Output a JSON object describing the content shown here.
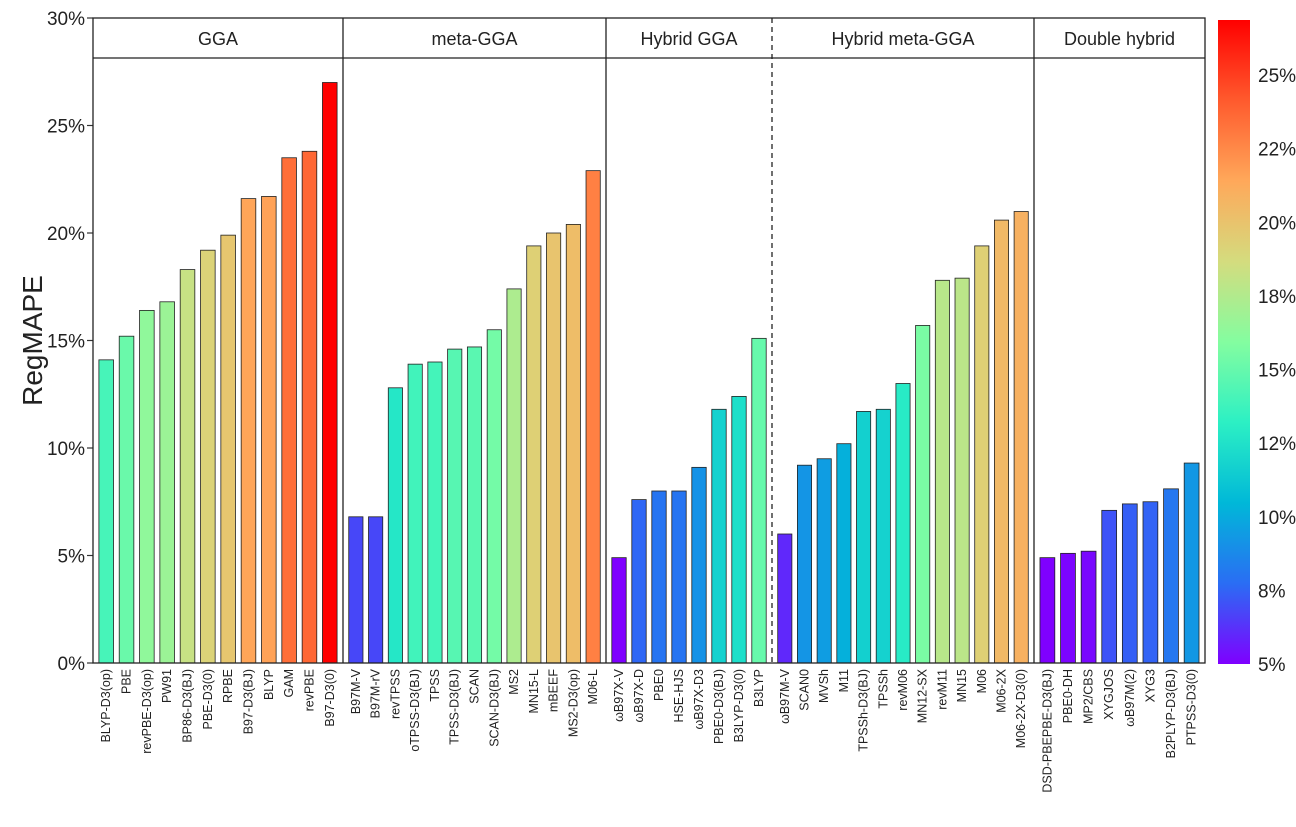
{
  "chart_data": {
    "type": "bar",
    "ylabel": "RegMAPE",
    "xlabel": "",
    "ylim": [
      0,
      30
    ],
    "y_ticks": [
      "0%",
      "5%",
      "10%",
      "15%",
      "20%",
      "25%",
      "30%"
    ],
    "grid": false,
    "legend": "colorbar-right",
    "colorbar": {
      "labels": [
        "5%",
        "8%",
        "10%",
        "12%",
        "15%",
        "18%",
        "20%",
        "22%",
        "25%"
      ],
      "range": [
        5,
        27
      ],
      "colormap": "rainbow",
      "colors": [
        "#7f00ff",
        "#2a6df4",
        "#00b8d8",
        "#2cf0c4",
        "#84fda0",
        "#d4dc7e",
        "#ffa85a",
        "#ff5a2d",
        "#ff0000"
      ]
    },
    "groups": [
      {
        "name": "GGA",
        "categories": [
          "BLYP-D3(op)",
          "PBE",
          "revPBE-D3(op)",
          "PW91",
          "BP86-D3(BJ)",
          "PBE-D3(0)",
          "RPBE",
          "B97-D3(BJ)",
          "BLYP",
          "GAM",
          "revPBE",
          "B97-D3(0)"
        ],
        "values": [
          14.1,
          15.2,
          16.4,
          16.8,
          18.3,
          19.2,
          19.9,
          21.6,
          21.7,
          23.5,
          23.8,
          27.0
        ]
      },
      {
        "name": "meta-GGA",
        "categories": [
          "B97M-V",
          "B97M-rV",
          "revTPSS",
          "oTPSS-D3(BJ)",
          "TPSS",
          "TPSS-D3(BJ)",
          "SCAN",
          "SCAN-D3(BJ)",
          "MS2",
          "MN15-L",
          "mBEEF",
          "MS2-D3(op)",
          "M06-L"
        ],
        "values": [
          6.8,
          6.8,
          12.8,
          13.9,
          14.0,
          14.6,
          14.7,
          15.5,
          17.4,
          19.4,
          20.0,
          20.4,
          22.9
        ]
      },
      {
        "name": "Hybrid GGA",
        "categories": [
          "ωB97X-V",
          "ωB97X-D",
          "PBE0",
          "HSE-HJS",
          "ωB97X-D3",
          "PBE0-D3(BJ)",
          "B3LYP-D3(0)",
          "B3LYP"
        ],
        "values": [
          4.9,
          7.6,
          8.0,
          8.0,
          9.1,
          11.8,
          12.4,
          15.1
        ]
      },
      {
        "name": "Hybrid meta-GGA",
        "categories": [
          "ωB97M-V",
          "SCAN0",
          "MVSh",
          "M11",
          "TPSSh-D3(BJ)",
          "TPSSh",
          "revM06",
          "MN12-SX",
          "revM11",
          "MN15",
          "M06",
          "M06-2X",
          "M06-2X-D3(0)"
        ],
        "values": [
          6.0,
          9.2,
          9.5,
          10.2,
          11.7,
          11.8,
          13.0,
          15.7,
          17.8,
          17.9,
          19.4,
          20.6,
          21.0
        ]
      },
      {
        "name": "Double hybrid",
        "categories": [
          "DSD-PBEPBE-D3(BJ)",
          "PBE0-DH",
          "MP2/CBS",
          "XYGJOS",
          "ωB97M(2)",
          "XYG3",
          "B2PLYP-D3(BJ)",
          "PTPSS-D3(0)"
        ],
        "values": [
          4.9,
          5.1,
          5.2,
          7.1,
          7.4,
          7.5,
          8.1,
          9.3
        ]
      }
    ]
  }
}
